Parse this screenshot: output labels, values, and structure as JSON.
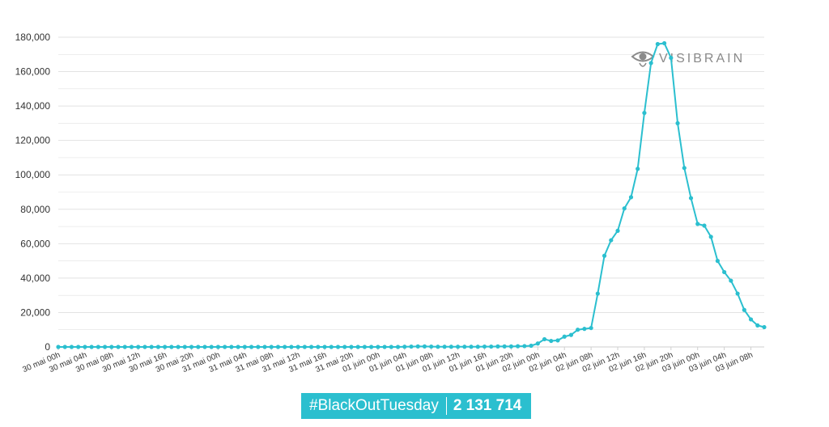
{
  "colors": {
    "line": "#2bbfcf",
    "grid": "#e2e2e2",
    "axis": "#cfcfcf",
    "text": "#333333",
    "watermark": "#8a8a8a",
    "badge_bg": "#2bbfcf"
  },
  "watermark": {
    "text": "VISIBRAIN",
    "icon": "eye-icon"
  },
  "badge": {
    "hashtag": "#BlackOutTuesday",
    "count": "2 131 714"
  },
  "chart_data": {
    "type": "line",
    "title": "",
    "xlabel": "",
    "ylabel": "",
    "ylim": [
      0,
      180000
    ],
    "yticks": [
      0,
      20000,
      40000,
      60000,
      80000,
      100000,
      120000,
      140000,
      160000,
      180000
    ],
    "ytick_labels": [
      "0",
      "20,000",
      "40,000",
      "60,000",
      "80,000",
      "100,000",
      "120,000",
      "140,000",
      "160,000",
      "180,000"
    ],
    "grid": true,
    "legend": "none",
    "x_interval": "1 hour",
    "x_start": "30 mai 00h",
    "xtick_labels": [
      "30 mai 00h",
      "30 mai 04h",
      "30 mai 08h",
      "30 mai 12h",
      "30 mai 16h",
      "30 mai 20h",
      "31 mai 00h",
      "31 mai 04h",
      "31 mai 08h",
      "31 mai 12h",
      "31 mai 16h",
      "31 mai 20h",
      "01 juin 00h",
      "01 juin 04h",
      "01 juin 08h",
      "01 juin 12h",
      "01 juin 16h",
      "01 juin 20h",
      "02 juin 00h",
      "02 juin 04h",
      "02 juin 08h",
      "02 juin 12h",
      "02 juin 16h",
      "02 juin 20h",
      "03 juin 00h",
      "03 juin 04h",
      "03 juin 08h"
    ],
    "series": [
      {
        "values": [
          0,
          0,
          0,
          0,
          0,
          0,
          0,
          0,
          0,
          0,
          0,
          0,
          0,
          0,
          0,
          0,
          0,
          0,
          0,
          0,
          0,
          0,
          0,
          0,
          0,
          0,
          0,
          0,
          0,
          0,
          0,
          0,
          0,
          0,
          0,
          0,
          0,
          0,
          0,
          0,
          0,
          0,
          0,
          0,
          0,
          0,
          0,
          0,
          0,
          0,
          0,
          0,
          100,
          200,
          300,
          300,
          200,
          100,
          100,
          100,
          100,
          100,
          100,
          100,
          200,
          200,
          300,
          300,
          300,
          400,
          500,
          700,
          2000,
          4500,
          3500,
          3800,
          6000,
          7000,
          10000,
          10500,
          11000,
          31000,
          53000,
          62000,
          67500,
          80500,
          87000,
          103500,
          136000,
          165000,
          176000,
          176500,
          168000,
          130000,
          104000,
          86500,
          71500,
          70500,
          64000,
          50000,
          43500,
          38500,
          31000,
          21500,
          16000,
          12500,
          11500
        ]
      }
    ]
  }
}
